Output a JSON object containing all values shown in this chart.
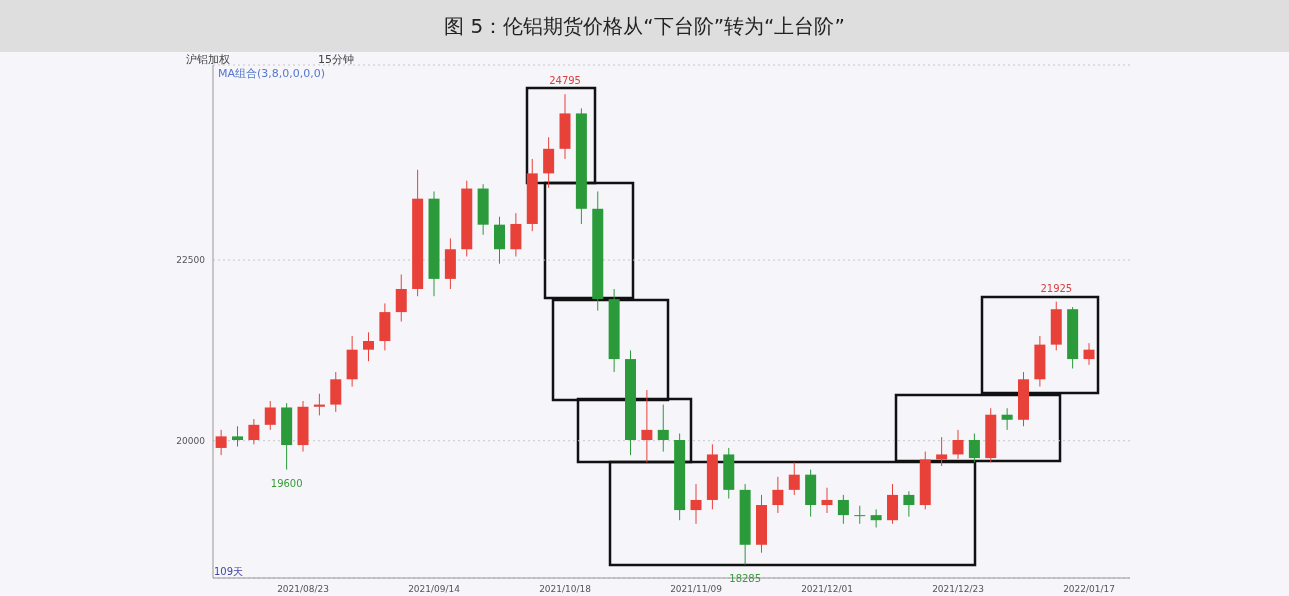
{
  "chart_data": {
    "type": "candlestick",
    "title": "图 5：伦铝期货价格从“下台阶”转为“上台阶”",
    "categories": [
      null,
      null,
      null,
      null,
      null,
      "2021/08/23",
      null,
      null,
      null,
      null,
      null,
      null,
      null,
      "2021/09/14",
      null,
      null,
      null,
      null,
      null,
      null,
      null,
      "2021/10/18",
      null,
      null,
      null,
      null,
      null,
      null,
      null,
      "2021/11/09",
      null,
      null,
      null,
      null,
      null,
      null,
      null,
      "2021/12/01",
      null,
      null,
      null,
      null,
      null,
      null,
      null,
      "2021/12/23",
      null,
      null,
      null,
      null,
      null,
      null,
      null,
      "2022/01/17",
      null,
      null
    ],
    "ohlc": [
      [
        19900,
        20150,
        19800,
        20060
      ],
      [
        20060,
        20200,
        19920,
        20010
      ],
      [
        20010,
        20300,
        19950,
        20220
      ],
      [
        20220,
        20550,
        20150,
        20460
      ],
      [
        20460,
        20520,
        19600,
        19940
      ],
      [
        19940,
        20550,
        19850,
        20470
      ],
      [
        20470,
        20650,
        20350,
        20500
      ],
      [
        20500,
        20950,
        20400,
        20850
      ],
      [
        20850,
        21450,
        20750,
        21260
      ],
      [
        21260,
        21500,
        21100,
        21380
      ],
      [
        21380,
        21900,
        21250,
        21780
      ],
      [
        21780,
        22300,
        21650,
        22100
      ],
      [
        22100,
        23750,
        22000,
        23350
      ],
      [
        23350,
        23450,
        22000,
        22240
      ],
      [
        22240,
        22800,
        22100,
        22650
      ],
      [
        22650,
        23600,
        22550,
        23490
      ],
      [
        23490,
        23550,
        22850,
        22990
      ],
      [
        22990,
        23100,
        22450,
        22650
      ],
      [
        22650,
        23150,
        22550,
        23000
      ],
      [
        23000,
        23900,
        22900,
        23700
      ],
      [
        23700,
        24200,
        23500,
        24040
      ],
      [
        24040,
        24795,
        23900,
        24530
      ],
      [
        24530,
        24600,
        23000,
        23210
      ],
      [
        23210,
        23450,
        21800,
        21960
      ],
      [
        21960,
        22100,
        20950,
        21130
      ],
      [
        21130,
        21250,
        19800,
        20010
      ],
      [
        20010,
        20700,
        19700,
        20150
      ],
      [
        20150,
        20500,
        19850,
        20010
      ],
      [
        20010,
        20100,
        18900,
        19040
      ],
      [
        19040,
        19400,
        18850,
        19180
      ],
      [
        19180,
        19950,
        19050,
        19810
      ],
      [
        19810,
        19900,
        19200,
        19320
      ],
      [
        19320,
        19400,
        18285,
        18560
      ],
      [
        18560,
        19250,
        18450,
        19110
      ],
      [
        19110,
        19500,
        19000,
        19320
      ],
      [
        19320,
        19700,
        19250,
        19530
      ],
      [
        19530,
        19600,
        18950,
        19110
      ],
      [
        19110,
        19350,
        19000,
        19180
      ],
      [
        19180,
        19250,
        18850,
        18970
      ],
      [
        18970,
        19100,
        18850,
        18970
      ],
      [
        18970,
        19050,
        18800,
        18900
      ],
      [
        18900,
        19400,
        18850,
        19250
      ],
      [
        19250,
        19300,
        18950,
        19110
      ],
      [
        19110,
        19850,
        19050,
        19740
      ],
      [
        19740,
        20050,
        19650,
        19810
      ],
      [
        19810,
        20150,
        19750,
        20010
      ],
      [
        20010,
        20100,
        19700,
        19760
      ],
      [
        19760,
        20450,
        19700,
        20360
      ],
      [
        20360,
        20450,
        20150,
        20290
      ],
      [
        20290,
        20950,
        20200,
        20850
      ],
      [
        20850,
        21450,
        20750,
        21330
      ],
      [
        21330,
        21925,
        21250,
        21820
      ],
      [
        21820,
        21850,
        21000,
        21130
      ],
      [
        21130,
        21350,
        21050,
        21260
      ],
      null,
      null
    ],
    "colors": [
      "#e8413a",
      "#2a9a3a",
      "#e8413a",
      "#e8413a",
      "#2a9a3a",
      "#e8413a",
      "#e8413a",
      "#e8413a",
      "#e8413a",
      "#e8413a",
      "#e8413a",
      "#e8413a",
      "#e8413a",
      "#2a9a3a",
      "#e8413a",
      "#e8413a",
      "#2a9a3a",
      "#2a9a3a",
      "#e8413a",
      "#e8413a",
      "#e8413a",
      "#e8413a",
      "#2a9a3a",
      "#2a9a3a",
      "#2a9a3a",
      "#2a9a3a",
      "#e8413a",
      "#2a9a3a",
      "#2a9a3a",
      "#e8413a",
      "#e8413a",
      "#2a9a3a",
      "#2a9a3a",
      "#e8413a",
      "#e8413a",
      "#e8413a",
      "#2a9a3a",
      "#e8413a",
      "#2a9a3a",
      "#2a9a3a",
      "#2a9a3a",
      "#e8413a",
      "#2a9a3a",
      "#e8413a",
      "#e8413a",
      "#e8413a",
      "#2a9a3a",
      "#e8413a",
      "#2a9a3a",
      "#e8413a",
      "#e8413a",
      "#e8413a",
      "#2a9a3a",
      "#e8413a",
      null,
      null
    ],
    "ylim": [
      18100,
      25200
    ],
    "yticks": [
      20000,
      22500
    ],
    "grid": "y",
    "annotations": [
      "沪铝加权",
      "15分钟",
      "MA组合(3,8,0,0,0,0)",
      "109天",
      {
        "text": "24795",
        "y": 24795
      },
      {
        "text": "19600",
        "y": 19600
      },
      {
        "text": "18285",
        "y": 18285
      },
      {
        "text": "21925",
        "y": 21925
      }
    ]
  }
}
